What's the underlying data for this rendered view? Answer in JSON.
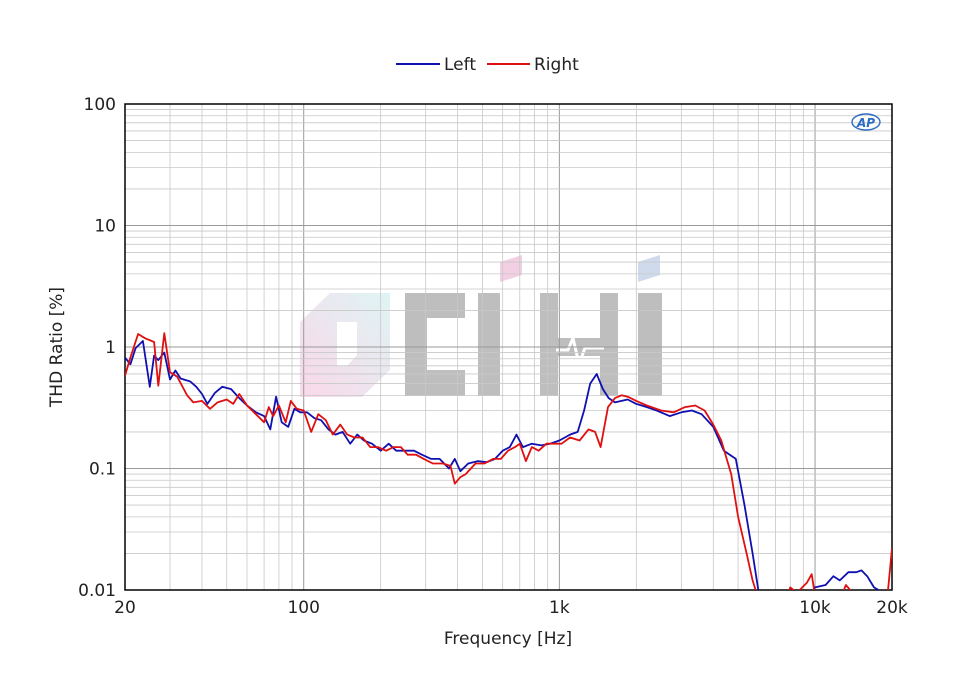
{
  "chart_data": {
    "type": "line",
    "xlabel": "Frequency [Hz]",
    "ylabel": "THD Ratio [%]",
    "x_scale": "log",
    "y_scale": "log",
    "xlim": [
      20,
      20000
    ],
    "ylim": [
      0.01,
      100
    ],
    "x_ticks": [
      20,
      100,
      1000,
      10000,
      20000
    ],
    "x_tick_labels": [
      "20",
      "100",
      "1k",
      "10k",
      "20k"
    ],
    "y_ticks": [
      0.01,
      0.1,
      1,
      10,
      100
    ],
    "y_tick_labels": [
      "0.01",
      "0.1",
      "1",
      "10",
      "100"
    ],
    "grid": true,
    "legend_position": "top-center",
    "series": [
      {
        "name": "Left",
        "color": "#1010b0",
        "points": [
          [
            20,
            0.82
          ],
          [
            21,
            0.72
          ],
          [
            22,
            0.98
          ],
          [
            23.5,
            1.12
          ],
          [
            25,
            0.47
          ],
          [
            26,
            0.85
          ],
          [
            27,
            0.78
          ],
          [
            28.5,
            0.9
          ],
          [
            30,
            0.54
          ],
          [
            31.5,
            0.64
          ],
          [
            33,
            0.55
          ],
          [
            36,
            0.52
          ],
          [
            38,
            0.47
          ],
          [
            40,
            0.41
          ],
          [
            42,
            0.34
          ],
          [
            45,
            0.42
          ],
          [
            48,
            0.47
          ],
          [
            52,
            0.45
          ],
          [
            56,
            0.38
          ],
          [
            60,
            0.33
          ],
          [
            65,
            0.29
          ],
          [
            70,
            0.27
          ],
          [
            74,
            0.21
          ],
          [
            78,
            0.39
          ],
          [
            82,
            0.24
          ],
          [
            87,
            0.22
          ],
          [
            92,
            0.31
          ],
          [
            97,
            0.29
          ],
          [
            103,
            0.29
          ],
          [
            110,
            0.26
          ],
          [
            117,
            0.25
          ],
          [
            125,
            0.21
          ],
          [
            133,
            0.19
          ],
          [
            142,
            0.2
          ],
          [
            152,
            0.16
          ],
          [
            162,
            0.19
          ],
          [
            172,
            0.17
          ],
          [
            185,
            0.16
          ],
          [
            200,
            0.14
          ],
          [
            215,
            0.16
          ],
          [
            230,
            0.14
          ],
          [
            250,
            0.14
          ],
          [
            270,
            0.14
          ],
          [
            290,
            0.13
          ],
          [
            315,
            0.12
          ],
          [
            340,
            0.12
          ],
          [
            370,
            0.1
          ],
          [
            390,
            0.12
          ],
          [
            410,
            0.095
          ],
          [
            440,
            0.11
          ],
          [
            480,
            0.115
          ],
          [
            520,
            0.113
          ],
          [
            560,
            0.12
          ],
          [
            600,
            0.14
          ],
          [
            640,
            0.15
          ],
          [
            680,
            0.19
          ],
          [
            720,
            0.15
          ],
          [
            780,
            0.16
          ],
          [
            850,
            0.155
          ],
          [
            920,
            0.16
          ],
          [
            1000,
            0.17
          ],
          [
            1100,
            0.19
          ],
          [
            1180,
            0.2
          ],
          [
            1250,
            0.3
          ],
          [
            1320,
            0.5
          ],
          [
            1400,
            0.6
          ],
          [
            1480,
            0.45
          ],
          [
            1560,
            0.38
          ],
          [
            1650,
            0.35
          ],
          [
            1750,
            0.36
          ],
          [
            1850,
            0.37
          ],
          [
            2000,
            0.34
          ],
          [
            2200,
            0.32
          ],
          [
            2400,
            0.3
          ],
          [
            2700,
            0.27
          ],
          [
            3000,
            0.29
          ],
          [
            3300,
            0.3
          ],
          [
            3600,
            0.28
          ],
          [
            4000,
            0.22
          ],
          [
            4400,
            0.14
          ],
          [
            4900,
            0.12
          ],
          [
            5300,
            0.05
          ],
          [
            5700,
            0.02
          ],
          [
            6000,
            0.01
          ],
          [
            6300,
            0.0085
          ],
          [
            9500,
            0.0085
          ],
          [
            10000,
            0.0105
          ],
          [
            11000,
            0.011
          ],
          [
            11800,
            0.013
          ],
          [
            12500,
            0.012
          ],
          [
            13500,
            0.014
          ],
          [
            14500,
            0.014
          ],
          [
            15200,
            0.0145
          ],
          [
            16000,
            0.013
          ],
          [
            17000,
            0.0105
          ],
          [
            18500,
            0.0095
          ],
          [
            20000,
            0.0095
          ]
        ]
      },
      {
        "name": "Right",
        "color": "#e01010",
        "points": [
          [
            20,
            0.58
          ],
          [
            21,
            0.82
          ],
          [
            22.5,
            1.28
          ],
          [
            24,
            1.18
          ],
          [
            26,
            1.1
          ],
          [
            27,
            0.48
          ],
          [
            28.5,
            1.3
          ],
          [
            30,
            0.62
          ],
          [
            32,
            0.57
          ],
          [
            35,
            0.4
          ],
          [
            37,
            0.35
          ],
          [
            40,
            0.36
          ],
          [
            43,
            0.31
          ],
          [
            46,
            0.35
          ],
          [
            50,
            0.37
          ],
          [
            53,
            0.34
          ],
          [
            56,
            0.41
          ],
          [
            60,
            0.33
          ],
          [
            65,
            0.28
          ],
          [
            70,
            0.24
          ],
          [
            73,
            0.32
          ],
          [
            76,
            0.27
          ],
          [
            80,
            0.33
          ],
          [
            85,
            0.24
          ],
          [
            89,
            0.36
          ],
          [
            94,
            0.31
          ],
          [
            100,
            0.3
          ],
          [
            107,
            0.2
          ],
          [
            114,
            0.28
          ],
          [
            122,
            0.25
          ],
          [
            130,
            0.19
          ],
          [
            139,
            0.23
          ],
          [
            148,
            0.19
          ],
          [
            158,
            0.18
          ],
          [
            170,
            0.18
          ],
          [
            182,
            0.15
          ],
          [
            195,
            0.15
          ],
          [
            210,
            0.14
          ],
          [
            225,
            0.15
          ],
          [
            240,
            0.15
          ],
          [
            255,
            0.13
          ],
          [
            275,
            0.13
          ],
          [
            295,
            0.12
          ],
          [
            320,
            0.11
          ],
          [
            350,
            0.11
          ],
          [
            375,
            0.105
          ],
          [
            390,
            0.075
          ],
          [
            410,
            0.085
          ],
          [
            430,
            0.09
          ],
          [
            470,
            0.11
          ],
          [
            510,
            0.11
          ],
          [
            550,
            0.12
          ],
          [
            590,
            0.12
          ],
          [
            630,
            0.14
          ],
          [
            670,
            0.15
          ],
          [
            700,
            0.16
          ],
          [
            740,
            0.115
          ],
          [
            780,
            0.15
          ],
          [
            830,
            0.14
          ],
          [
            890,
            0.16
          ],
          [
            950,
            0.16
          ],
          [
            1020,
            0.16
          ],
          [
            1100,
            0.18
          ],
          [
            1200,
            0.17
          ],
          [
            1300,
            0.21
          ],
          [
            1380,
            0.2
          ],
          [
            1450,
            0.15
          ],
          [
            1550,
            0.32
          ],
          [
            1650,
            0.38
          ],
          [
            1750,
            0.4
          ],
          [
            1850,
            0.39
          ],
          [
            2000,
            0.36
          ],
          [
            2200,
            0.33
          ],
          [
            2500,
            0.3
          ],
          [
            2800,
            0.29
          ],
          [
            3100,
            0.32
          ],
          [
            3400,
            0.33
          ],
          [
            3700,
            0.3
          ],
          [
            4000,
            0.23
          ],
          [
            4300,
            0.17
          ],
          [
            4700,
            0.09
          ],
          [
            5000,
            0.04
          ],
          [
            5400,
            0.02
          ],
          [
            5700,
            0.012
          ],
          [
            6000,
            0.0085
          ],
          [
            7700,
            0.0085
          ],
          [
            8000,
            0.0105
          ],
          [
            8500,
            0.0095
          ],
          [
            9300,
            0.0115
          ],
          [
            9700,
            0.0135
          ],
          [
            10000,
            0.009
          ],
          [
            12700,
            0.009
          ],
          [
            13200,
            0.011
          ],
          [
            14000,
            0.0095
          ],
          [
            16000,
            0.009
          ],
          [
            19200,
            0.009
          ],
          [
            20000,
            0.022
          ]
        ]
      }
    ]
  },
  "logo": {
    "watermark_text": "CIHI",
    "ap_badge_text": "AP"
  }
}
